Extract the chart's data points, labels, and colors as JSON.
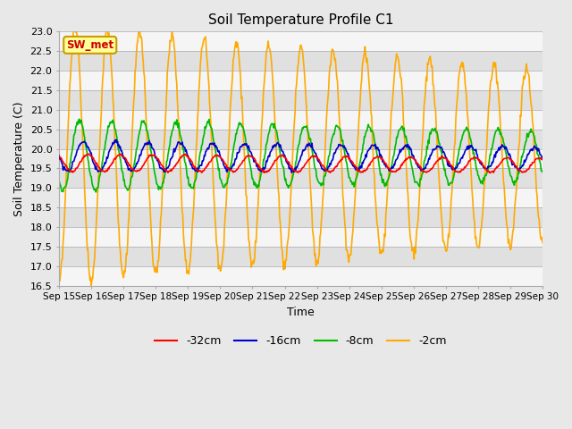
{
  "title": "Soil Temperature Profile C1",
  "xlabel": "Time",
  "ylabel": "Soil Temperature (C)",
  "ylim": [
    16.5,
    23.0
  ],
  "yticks": [
    16.5,
    17.0,
    17.5,
    18.0,
    18.5,
    19.0,
    19.5,
    20.0,
    20.5,
    21.0,
    21.5,
    22.0,
    22.5,
    23.0
  ],
  "xtick_labels": [
    "Sep 15",
    "Sep 16",
    "Sep 17",
    "Sep 18",
    "Sep 19",
    "Sep 20",
    "Sep 21",
    "Sep 22",
    "Sep 23",
    "Sep 24",
    "Sep 25",
    "Sep 26",
    "Sep 27",
    "Sep 28",
    "Sep 29",
    "Sep 30"
  ],
  "colors": {
    "-32cm": "#ff0000",
    "-16cm": "#0000cc",
    "-8cm": "#00bb00",
    "-2cm": "#ffaa00"
  },
  "annotation_text": "SW_met",
  "annotation_color": "#cc0000",
  "annotation_bg": "#ffff99",
  "annotation_border": "#cc9900",
  "background_color": "#e8e8e8",
  "plot_bg_light": "#f5f5f5",
  "plot_bg_dark": "#e0e0e0",
  "n_days": 15,
  "points_per_day": 48
}
